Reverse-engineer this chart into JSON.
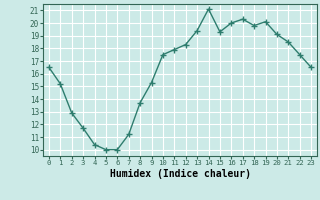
{
  "x": [
    0,
    1,
    2,
    3,
    4,
    5,
    6,
    7,
    8,
    9,
    10,
    11,
    12,
    13,
    14,
    15,
    16,
    17,
    18,
    19,
    20,
    21,
    22,
    23
  ],
  "y": [
    16.5,
    15.2,
    12.9,
    11.7,
    10.4,
    10.0,
    10.0,
    11.2,
    13.7,
    15.3,
    17.5,
    17.9,
    18.3,
    19.4,
    21.1,
    19.3,
    20.0,
    20.3,
    19.8,
    20.1,
    19.1,
    18.5,
    17.5,
    16.5
  ],
  "xlabel": "Humidex (Indice chaleur)",
  "ylim": [
    9.5,
    21.5
  ],
  "xlim": [
    -0.5,
    23.5
  ],
  "yticks": [
    10,
    11,
    12,
    13,
    14,
    15,
    16,
    17,
    18,
    19,
    20,
    21
  ],
  "xticks": [
    0,
    1,
    2,
    3,
    4,
    5,
    6,
    7,
    8,
    9,
    10,
    11,
    12,
    13,
    14,
    15,
    16,
    17,
    18,
    19,
    20,
    21,
    22,
    23
  ],
  "line_color": "#2e7d6e",
  "marker": "+",
  "bg_color": "#cceae7",
  "grid_color": "#ffffff",
  "spine_color": "#336655"
}
